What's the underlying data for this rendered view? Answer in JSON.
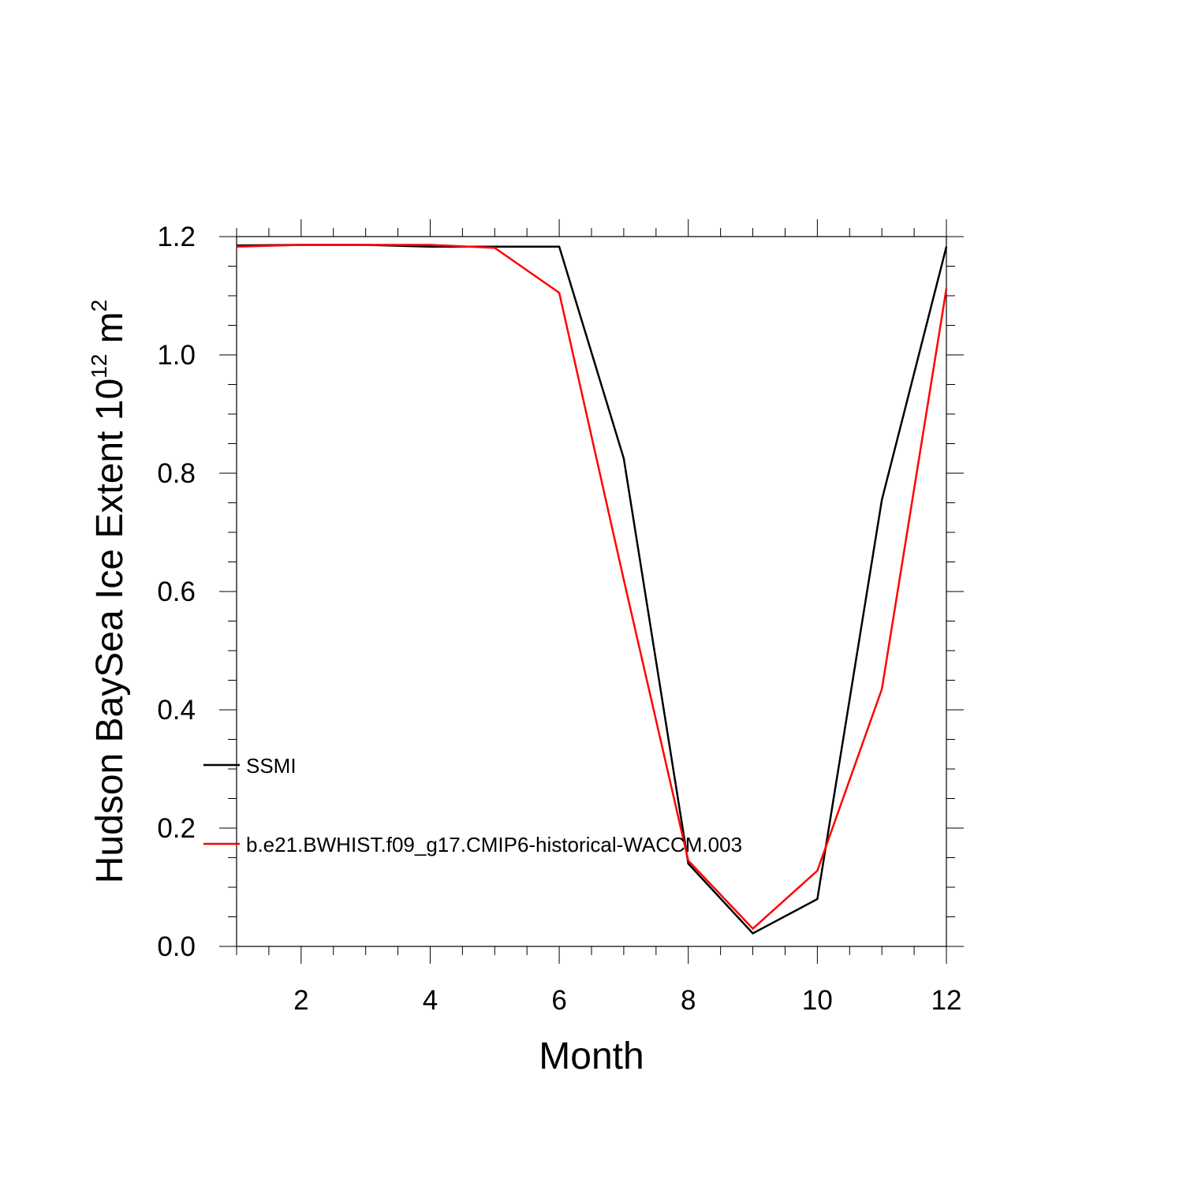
{
  "chart_data": {
    "type": "line",
    "xlabel": "Month",
    "ylabel": {
      "prefix": "Hudson BaySea Ice Extent 10",
      "exponent": "12",
      "unit": " m",
      "unit_exponent": "2"
    },
    "xlim": [
      1,
      12
    ],
    "ylim": [
      0.0,
      1.2
    ],
    "x_ticks": [
      2,
      4,
      6,
      8,
      10,
      12
    ],
    "x_tick_labels": [
      "2",
      "4",
      "6",
      "8",
      "10",
      "12"
    ],
    "y_ticks": [
      0.0,
      0.2,
      0.4,
      0.6,
      0.8,
      1.0,
      1.2
    ],
    "y_tick_labels": [
      "0.0",
      "0.2",
      "0.4",
      "0.6",
      "0.8",
      "1.0",
      "1.2"
    ],
    "x": [
      1,
      2,
      3,
      4,
      5,
      6,
      7,
      8,
      9,
      10,
      11,
      12
    ],
    "grid": false,
    "legend_position": "left-center",
    "series": [
      {
        "name": "SSMI",
        "color": "#000000",
        "values": [
          1.185,
          1.186,
          1.186,
          1.183,
          1.183,
          1.183,
          0.825,
          0.14,
          0.022,
          0.08,
          0.755,
          1.183
        ]
      },
      {
        "name": "b.e21.BWHIST.f09_g17.CMIP6-historical-WACCM.003",
        "color": "#ff0000",
        "values": [
          1.183,
          1.186,
          1.186,
          1.186,
          1.181,
          1.105,
          0.62,
          0.145,
          0.03,
          0.128,
          0.435,
          1.112
        ]
      }
    ]
  }
}
